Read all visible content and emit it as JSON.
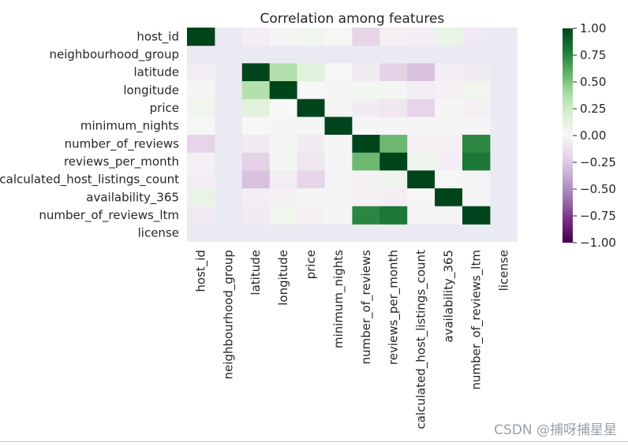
{
  "chart_data": {
    "type": "heatmap",
    "title": "Correlation among  features",
    "xlabel": "",
    "ylabel": "",
    "labels": [
      "host_id",
      "neighbourhood_group",
      "latitude",
      "longitude",
      "price",
      "minimum_nights",
      "number_of_reviews",
      "reviews_per_month",
      "calculated_host_listings_count",
      "availability_365",
      "number_of_reviews_ltm",
      "license"
    ],
    "values": [
      [
        1.0,
        null,
        -0.05,
        -0.01,
        0.05,
        0.01,
        -0.2,
        -0.04,
        -0.05,
        0.1,
        -0.08,
        null
      ],
      [
        null,
        null,
        null,
        null,
        null,
        null,
        null,
        null,
        null,
        null,
        null,
        null
      ],
      [
        -0.05,
        null,
        1.0,
        0.35,
        0.15,
        0.0,
        -0.07,
        -0.21,
        -0.28,
        -0.05,
        -0.07,
        null
      ],
      [
        -0.01,
        null,
        0.35,
        1.0,
        0.0,
        -0.01,
        0.03,
        0.03,
        -0.06,
        -0.04,
        0.05,
        null
      ],
      [
        0.05,
        null,
        0.15,
        0.0,
        1.0,
        0.02,
        -0.07,
        -0.1,
        -0.2,
        -0.01,
        -0.04,
        null
      ],
      [
        0.01,
        null,
        0.0,
        -0.01,
        0.02,
        1.0,
        -0.01,
        -0.02,
        -0.02,
        -0.01,
        -0.02,
        null
      ],
      [
        -0.2,
        null,
        -0.07,
        0.03,
        -0.07,
        -0.01,
        1.0,
        0.55,
        -0.04,
        -0.04,
        0.75,
        null
      ],
      [
        -0.04,
        null,
        -0.21,
        0.03,
        -0.1,
        -0.02,
        0.55,
        1.0,
        0.06,
        -0.05,
        0.8,
        null
      ],
      [
        -0.05,
        null,
        -0.28,
        -0.06,
        -0.2,
        -0.02,
        -0.04,
        0.06,
        1.0,
        0.01,
        -0.03,
        null
      ],
      [
        0.1,
        null,
        -0.05,
        -0.04,
        -0.01,
        -0.01,
        -0.04,
        -0.05,
        0.01,
        1.0,
        -0.03,
        null
      ],
      [
        -0.08,
        null,
        -0.07,
        0.05,
        -0.04,
        -0.02,
        0.75,
        0.8,
        -0.03,
        -0.03,
        1.0,
        null
      ],
      [
        null,
        null,
        null,
        null,
        null,
        null,
        null,
        null,
        null,
        null,
        null,
        null
      ]
    ],
    "vmin": -1.0,
    "vmax": 1.0,
    "colormap": "PRGn",
    "missing_color": "#eaeaf2",
    "colorbar_ticks": [
      "1.00",
      "0.75",
      "0.50",
      "0.25",
      "0.00",
      "-0.25",
      "-0.50",
      "-0.75",
      "-1.00"
    ]
  },
  "watermark": "CSDN @捕呀捕星星"
}
